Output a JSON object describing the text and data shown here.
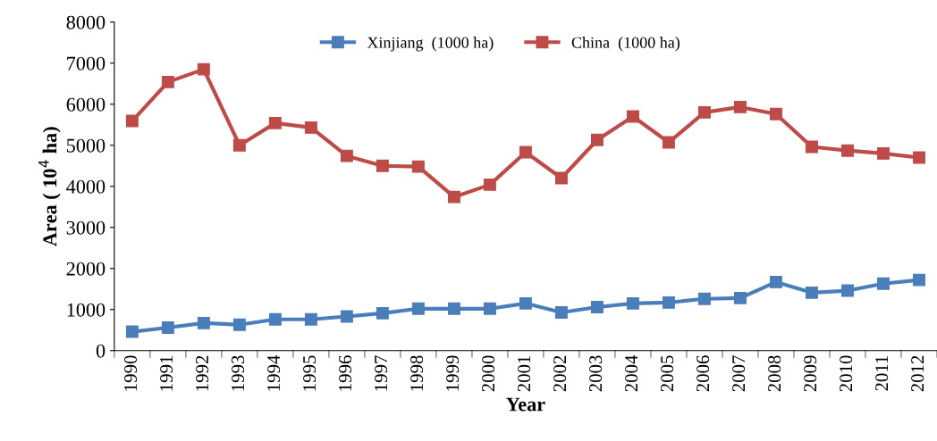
{
  "chart_data": {
    "type": "line",
    "xlabel": "Year",
    "ylabel": "Area ( 10$^{4}$ ha)",
    "categories": [
      "1990",
      "1991",
      "1992",
      "1993",
      "1994",
      "1995",
      "1996",
      "1997",
      "1998",
      "1999",
      "2000",
      "2001",
      "2002",
      "2003",
      "2004",
      "2005",
      "2006",
      "2007",
      "2008",
      "2009",
      "2010",
      "2011",
      "2012"
    ],
    "series": [
      {
        "name": "Xinjiang  (1000 ha)",
        "color": "#4a7ebb",
        "values": [
          460,
          560,
          670,
          630,
          760,
          760,
          830,
          910,
          1020,
          1020,
          1020,
          1150,
          930,
          1060,
          1150,
          1170,
          1260,
          1280,
          1670,
          1410,
          1460,
          1630,
          1720
        ]
      },
      {
        "name": "China  (1000 ha)",
        "color": "#be4b48",
        "values": [
          5590,
          6540,
          6850,
          5000,
          5540,
          5430,
          4740,
          4500,
          4480,
          3740,
          4040,
          4830,
          4200,
          5130,
          5700,
          5070,
          5800,
          5930,
          5760,
          4960,
          4870,
          4800,
          4700
        ]
      }
    ],
    "ylim": [
      0,
      8000
    ],
    "yticks": [
      0,
      1000,
      2000,
      3000,
      4000,
      5000,
      6000,
      7000,
      8000
    ],
    "grid": false,
    "legend": "top",
    "marker": "square",
    "line_style": "solid"
  }
}
